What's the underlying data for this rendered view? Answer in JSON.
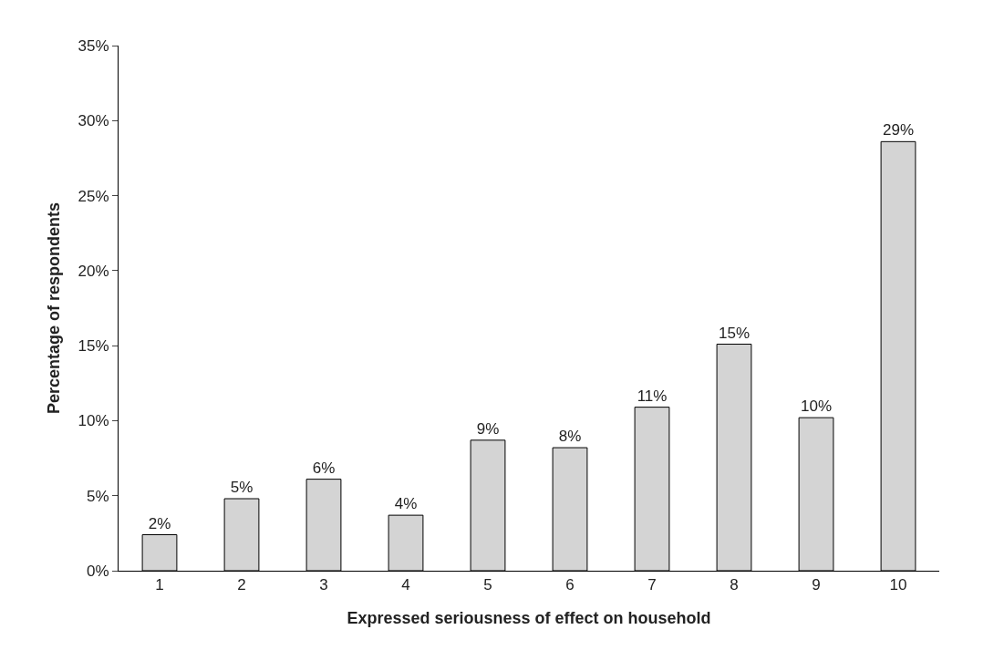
{
  "chart_data": {
    "type": "bar",
    "xlabel": "Expressed seriousness of effect on household",
    "ylabel": "Percentage of respondents",
    "categories": [
      "1",
      "2",
      "3",
      "4",
      "5",
      "6",
      "7",
      "8",
      "9",
      "10"
    ],
    "values": [
      2.4,
      4.8,
      6.1,
      3.7,
      8.7,
      8.2,
      10.9,
      15.1,
      10.2,
      28.6
    ],
    "value_labels": [
      "2%",
      "5%",
      "6%",
      "4%",
      "9%",
      "8%",
      "11%",
      "15%",
      "10%",
      "29%"
    ],
    "color": "#d4d4d4",
    "ylim": [
      0,
      35
    ],
    "yticks": [
      {
        "value": 0,
        "label": "0%"
      },
      {
        "value": 5,
        "label": "5%"
      },
      {
        "value": 10,
        "label": "10%"
      },
      {
        "value": 15,
        "label": "15%"
      },
      {
        "value": 20,
        "label": "20%"
      },
      {
        "value": 25,
        "label": "25%"
      },
      {
        "value": 30,
        "label": "30%"
      },
      {
        "value": 35,
        "label": "35%"
      }
    ],
    "legend": false
  }
}
